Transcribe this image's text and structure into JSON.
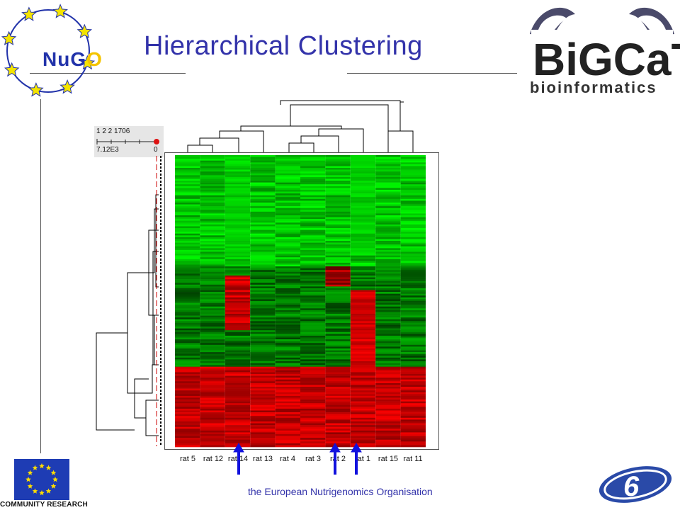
{
  "slide": {
    "title": "Hierarchical Clustering",
    "footer": "the European Nutrigenomics Organisation"
  },
  "logos": {
    "nugo": {
      "prefix": "NuG",
      "suffix": "O"
    },
    "bigcat": {
      "name": "BiGCaT",
      "subtitle": "bioinformatics"
    },
    "eu": {
      "caption": "COMMUNITY RESEARCH"
    },
    "fp6": {
      "mark": "6"
    }
  },
  "colors": {
    "title": "#3333aa",
    "heat_high": "#ff0000",
    "heat_low": "#00ff00",
    "arrow": "#1111dd",
    "dendrogram": "#000000",
    "threshold": "#cc0000"
  },
  "scale_widget": {
    "top_values": "1  2  2  1706",
    "min_label": "7.12E3",
    "max_label": "0"
  },
  "heatmap": {
    "columns": [
      "rat  5",
      "rat  12",
      "rat 14",
      "rat 13",
      "rat  4",
      "rat  3",
      "rat  2",
      "rat 1",
      "rat  15",
      "rat 11"
    ],
    "highlighted_columns": [
      "rat 14",
      "rat  2",
      "rat 1"
    ]
  }
}
